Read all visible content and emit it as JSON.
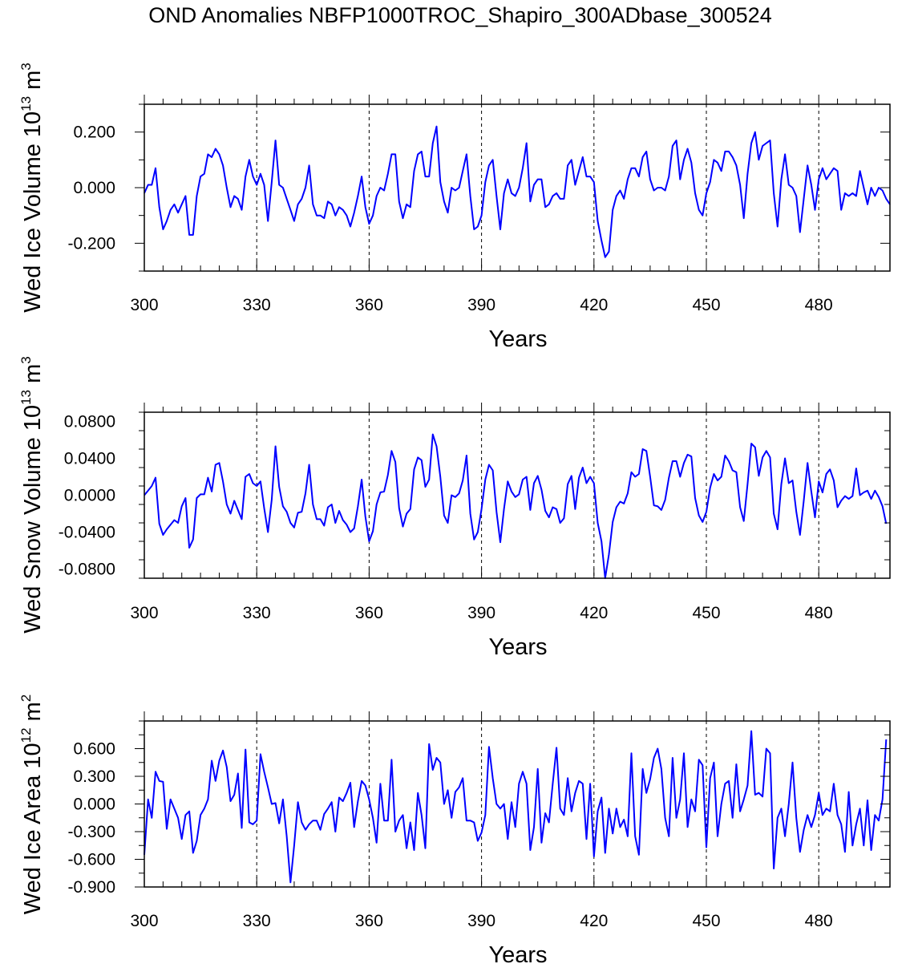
{
  "title": "OND Anomalies NBFP1000TROC_Shapiro_300ADbase_300524",
  "chart_data": [
    {
      "type": "line",
      "ylabel_main": "Wed Ice Volume 10",
      "ylabel_exp": "13",
      "ylabel_unit": " m",
      "ylabel_unit_exp": "3",
      "xlabel": "Years",
      "xlim": [
        300,
        499
      ],
      "ylim": [
        -0.3,
        0.3
      ],
      "xticks": [
        "300",
        "330",
        "360",
        "390",
        "420",
        "450",
        "480"
      ],
      "yticks": [
        "0.200",
        "0.000",
        "-0.200"
      ],
      "ytick_values": [
        0.2,
        0.0,
        -0.2
      ],
      "line_color": "#0000ff",
      "x_start": 300,
      "values": [
        -0.02,
        0.01,
        0.01,
        0.07,
        -0.07,
        -0.15,
        -0.12,
        -0.08,
        -0.06,
        -0.09,
        -0.06,
        -0.03,
        -0.17,
        -0.17,
        -0.03,
        0.04,
        0.05,
        0.12,
        0.11,
        0.14,
        0.12,
        0.08,
        0.0,
        -0.07,
        -0.03,
        -0.04,
        -0.08,
        0.04,
        0.1,
        0.04,
        0.01,
        0.05,
        0.01,
        -0.12,
        0.02,
        0.17,
        0.01,
        0.0,
        -0.04,
        -0.08,
        -0.12,
        -0.06,
        -0.04,
        0.0,
        0.08,
        -0.06,
        -0.1,
        -0.1,
        -0.11,
        -0.05,
        -0.06,
        -0.1,
        -0.07,
        -0.08,
        -0.1,
        -0.14,
        -0.09,
        -0.03,
        0.04,
        -0.07,
        -0.13,
        -0.1,
        -0.03,
        0.0,
        -0.01,
        0.05,
        0.12,
        0.12,
        -0.05,
        -0.11,
        -0.06,
        -0.07,
        0.06,
        0.12,
        0.13,
        0.04,
        0.04,
        0.16,
        0.22,
        0.02,
        -0.05,
        -0.09,
        0.0,
        -0.01,
        0.0,
        0.06,
        0.12,
        -0.03,
        -0.15,
        -0.14,
        -0.1,
        0.02,
        0.08,
        0.1,
        -0.03,
        -0.15,
        -0.02,
        0.03,
        -0.02,
        -0.03,
        0.0,
        0.07,
        0.16,
        -0.05,
        0.01,
        0.03,
        0.03,
        -0.07,
        -0.06,
        -0.03,
        -0.02,
        -0.04,
        -0.04,
        0.08,
        0.1,
        0.01,
        0.06,
        0.11,
        0.04,
        0.04,
        0.02,
        -0.12,
        -0.19,
        -0.25,
        -0.23,
        -0.08,
        -0.03,
        -0.01,
        -0.04,
        0.03,
        0.07,
        0.07,
        0.04,
        0.11,
        0.13,
        0.03,
        -0.01,
        0.0,
        0.0,
        -0.01,
        0.04,
        0.15,
        0.17,
        0.03,
        0.1,
        0.14,
        0.09,
        -0.02,
        -0.08,
        -0.1,
        -0.02,
        0.02,
        0.1,
        0.09,
        0.06,
        0.13,
        0.13,
        0.11,
        0.08,
        0.01,
        -0.11,
        0.05,
        0.16,
        0.2,
        0.1,
        0.15,
        0.16,
        0.17,
        -0.02,
        -0.14,
        0.03,
        0.12,
        0.01,
        0.0,
        -0.03,
        -0.16,
        -0.04,
        0.08,
        0.01,
        -0.08,
        0.03,
        0.07,
        0.03,
        0.05,
        0.07,
        0.06,
        -0.08,
        -0.02,
        -0.03,
        -0.02,
        -0.03,
        0.06,
        0.0,
        -0.06,
        0.0,
        -0.03,
        0.0,
        -0.01,
        -0.04,
        -0.06
      ]
    },
    {
      "type": "line",
      "ylabel_main": "Wed Snow Volume 10",
      "ylabel_exp": "13",
      "ylabel_unit": " m",
      "ylabel_unit_exp": "3",
      "xlabel": "Years",
      "xlim": [
        300,
        499
      ],
      "ylim": [
        -0.09,
        0.09
      ],
      "xticks": [
        "300",
        "330",
        "360",
        "390",
        "420",
        "450",
        "480"
      ],
      "yticks": [
        "0.0800",
        "0.0400",
        "0.0000",
        "-0.0400",
        "-0.0800"
      ],
      "ytick_values": [
        0.08,
        0.04,
        0.0,
        -0.04,
        -0.08
      ],
      "line_color": "#0000ff",
      "x_start": 300,
      "values": [
        0.0,
        0.005,
        0.01,
        0.019,
        -0.031,
        -0.043,
        -0.037,
        -0.032,
        -0.027,
        -0.03,
        -0.012,
        -0.003,
        -0.057,
        -0.048,
        -0.003,
        0.001,
        0.001,
        0.019,
        0.004,
        0.033,
        0.035,
        0.015,
        -0.01,
        -0.02,
        -0.006,
        -0.016,
        -0.026,
        0.02,
        0.023,
        0.013,
        0.01,
        0.015,
        -0.014,
        -0.04,
        -0.005,
        0.053,
        0.009,
        -0.012,
        -0.018,
        -0.03,
        -0.035,
        -0.019,
        -0.018,
        0.002,
        0.033,
        -0.01,
        -0.026,
        -0.026,
        -0.033,
        -0.013,
        -0.01,
        -0.03,
        -0.017,
        -0.027,
        -0.032,
        -0.04,
        -0.036,
        -0.012,
        0.017,
        -0.023,
        -0.05,
        -0.039,
        -0.01,
        0.003,
        0.004,
        0.022,
        0.048,
        0.036,
        -0.014,
        -0.034,
        -0.02,
        -0.015,
        0.028,
        0.041,
        0.038,
        0.009,
        0.017,
        0.066,
        0.053,
        0.02,
        -0.022,
        -0.03,
        0.0,
        -0.002,
        0.002,
        0.016,
        0.043,
        -0.02,
        -0.048,
        -0.04,
        -0.015,
        0.017,
        0.033,
        0.027,
        -0.018,
        -0.051,
        -0.015,
        0.015,
        0.004,
        -0.002,
        0.001,
        0.017,
        0.02,
        -0.016,
        0.013,
        0.021,
        0.006,
        -0.017,
        -0.024,
        -0.013,
        -0.015,
        -0.03,
        -0.025,
        0.012,
        0.021,
        -0.015,
        0.019,
        0.03,
        0.013,
        0.02,
        0.013,
        -0.03,
        -0.05,
        -0.09,
        -0.064,
        -0.029,
        -0.013,
        -0.007,
        -0.009,
        0.002,
        0.025,
        0.02,
        0.023,
        0.05,
        0.048,
        0.02,
        -0.011,
        -0.012,
        -0.016,
        -0.005,
        0.019,
        0.037,
        0.037,
        0.02,
        0.035,
        0.044,
        0.042,
        -0.003,
        -0.022,
        -0.029,
        -0.018,
        0.008,
        0.023,
        0.016,
        0.02,
        0.043,
        0.037,
        0.027,
        0.025,
        -0.013,
        -0.028,
        0.012,
        0.056,
        0.052,
        0.021,
        0.041,
        0.048,
        0.041,
        -0.02,
        -0.037,
        0.012,
        0.04,
        0.013,
        0.016,
        -0.018,
        -0.043,
        -0.006,
        0.035,
        0.004,
        -0.024,
        0.015,
        0.003,
        0.023,
        0.028,
        0.016,
        -0.013,
        -0.006,
        -0.001,
        -0.004,
        -0.001,
        0.029,
        0.0,
        0.003,
        0.005,
        -0.004,
        0.005,
        -0.002,
        -0.012,
        -0.031
      ]
    },
    {
      "type": "line",
      "ylabel_main": "Wed Ice Area 10",
      "ylabel_exp": "12",
      "ylabel_unit": " m",
      "ylabel_unit_exp": "2",
      "xlabel": "Years",
      "xlim": [
        300,
        499
      ],
      "ylim": [
        -0.9,
        0.9
      ],
      "xticks": [
        "300",
        "330",
        "360",
        "390",
        "420",
        "450",
        "480"
      ],
      "yticks": [
        "0.600",
        "0.300",
        "0.000",
        "-0.300",
        "-0.600",
        "-0.900"
      ],
      "ytick_values": [
        0.6,
        0.3,
        0.0,
        -0.3,
        -0.6,
        -0.9
      ],
      "line_color": "#0000ff",
      "x_start": 300,
      "values": [
        -0.55,
        0.05,
        -0.15,
        0.35,
        0.25,
        0.24,
        -0.27,
        0.05,
        -0.05,
        -0.15,
        -0.38,
        -0.12,
        -0.08,
        -0.53,
        -0.4,
        -0.12,
        -0.05,
        0.05,
        0.47,
        0.25,
        0.47,
        0.58,
        0.4,
        0.03,
        0.1,
        0.33,
        -0.26,
        0.59,
        -0.2,
        -0.22,
        -0.18,
        0.54,
        0.35,
        0.18,
        0.0,
        0.01,
        -0.21,
        0.05,
        -0.35,
        -0.85,
        -0.45,
        0.02,
        -0.2,
        -0.28,
        -0.22,
        -0.18,
        -0.18,
        -0.28,
        -0.11,
        -0.05,
        0.02,
        -0.3,
        0.07,
        0.03,
        0.12,
        0.23,
        -0.25,
        0.03,
        0.25,
        0.2,
        0.05,
        -0.15,
        -0.42,
        0.22,
        -0.18,
        -0.18,
        0.48,
        -0.3,
        -0.18,
        -0.12,
        -0.48,
        -0.2,
        -0.5,
        0.12,
        -0.12,
        -0.48,
        0.65,
        0.37,
        0.5,
        0.45,
        0.0,
        0.15,
        -0.15,
        0.13,
        0.18,
        0.28,
        -0.18,
        -0.18,
        -0.2,
        -0.4,
        -0.31,
        -0.12,
        0.62,
        0.28,
        0.0,
        -0.05,
        0.0,
        -0.38,
        0.02,
        -0.25,
        0.22,
        0.35,
        0.22,
        -0.5,
        -0.25,
        0.38,
        -0.42,
        -0.1,
        -0.2,
        0.22,
        0.61,
        -0.05,
        -0.12,
        0.28,
        -0.08,
        0.12,
        0.25,
        0.22,
        -0.38,
        0.22,
        -0.57,
        -0.08,
        0.07,
        -0.53,
        -0.05,
        -0.32,
        -0.05,
        -0.25,
        -0.17,
        -0.35,
        0.55,
        -0.35,
        -0.55,
        0.38,
        0.12,
        0.27,
        0.5,
        0.6,
        0.38,
        -0.15,
        -0.35,
        0.5,
        -0.15,
        0.05,
        0.55,
        -0.25,
        0.05,
        -0.08,
        0.48,
        0.42,
        -0.47,
        0.28,
        0.45,
        -0.35,
        0.0,
        0.22,
        0.25,
        -0.15,
        0.43,
        -0.08,
        0.05,
        0.2,
        0.79,
        0.1,
        0.12,
        0.08,
        0.6,
        0.55,
        -0.7,
        -0.15,
        -0.05,
        -0.35,
        0.0,
        0.45,
        -0.15,
        -0.52,
        -0.28,
        -0.12,
        -0.25,
        -0.12,
        0.12,
        -0.12,
        -0.05,
        -0.08,
        0.22,
        -0.12,
        -0.22,
        -0.52,
        0.13,
        -0.45,
        -0.22,
        -0.05,
        -0.45,
        0.04,
        -0.5,
        -0.12,
        -0.18,
        0.05,
        0.7
      ]
    }
  ]
}
